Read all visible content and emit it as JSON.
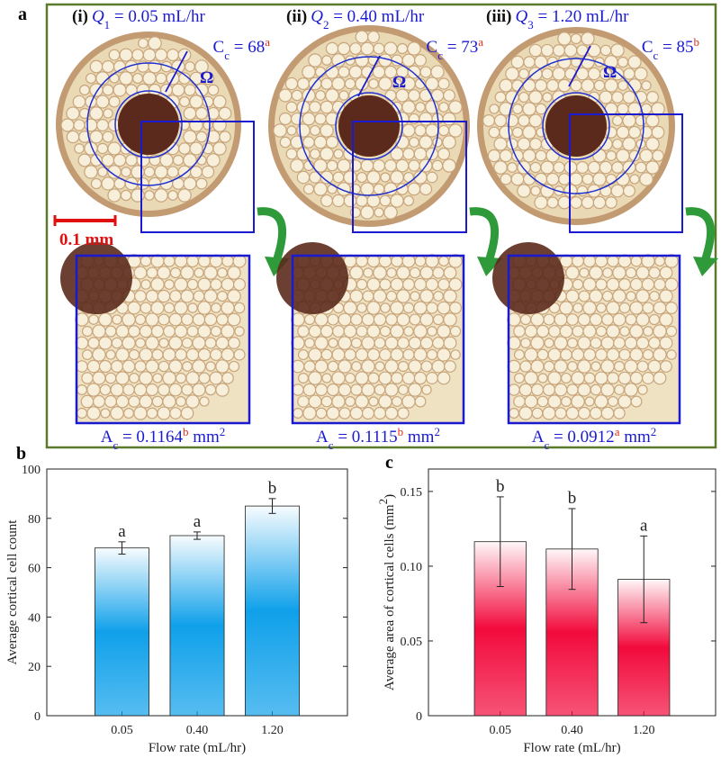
{
  "panel_a": {
    "label": "a",
    "omega": "Ω",
    "scale_bar": "0.1 mm",
    "sections": [
      {
        "numeral": "(i)",
        "rate_symbol": "Q",
        "rate_sub": "1",
        "rate": " = 0.05 mL/hr",
        "count_symbol": "C",
        "count_sub": "c",
        "count": " = 68",
        "count_letter": "a",
        "area_symbol": "A",
        "area_sub": "c",
        "area": " = 0.1164",
        "area_letter": "b",
        "area_unit": " mm",
        "area_unit_sup": "2"
      },
      {
        "numeral": "(ii)",
        "rate_symbol": "Q",
        "rate_sub": "2",
        "rate": " = 0.40 mL/hr",
        "count_symbol": "C",
        "count_sub": "c",
        "count": " = 73",
        "count_letter": "a",
        "area_symbol": "A",
        "area_sub": "c",
        "area": " = 0.1115",
        "area_letter": "b",
        "area_unit": " mm",
        "area_unit_sup": "2"
      },
      {
        "numeral": "(iii)",
        "rate_symbol": "Q",
        "rate_sub": "3",
        "rate": " = 1.20 mL/hr",
        "count_symbol": "C",
        "count_sub": "c",
        "count": " = 85",
        "count_letter": "b",
        "area_symbol": "A",
        "area_sub": "c",
        "area": " = 0.0912",
        "area_letter": "a",
        "area_unit": " mm",
        "area_unit_sup": "2"
      }
    ]
  },
  "chart_data": [
    {
      "type": "bar",
      "panel_label": "b",
      "categories": [
        "0.05",
        "0.40",
        "1.20"
      ],
      "values": [
        68,
        73,
        85
      ],
      "errors": [
        2.5,
        1.5,
        3
      ],
      "letters": [
        "a",
        "a",
        "b"
      ],
      "color": "#0fa0ea",
      "ylim": [
        0,
        100
      ],
      "yticks": [
        0,
        20,
        40,
        60,
        80,
        100
      ],
      "ylabel": "Average cortical cell count",
      "xlabel": "Flow rate (mL/hr)"
    },
    {
      "type": "bar",
      "panel_label": "c",
      "categories": [
        "0.05",
        "0.40",
        "1.20"
      ],
      "values": [
        0.1164,
        0.1115,
        0.0912
      ],
      "errors": [
        0.03,
        0.027,
        0.029
      ],
      "letters": [
        "b",
        "b",
        "a"
      ],
      "color": "#f20a3c",
      "ylim": [
        0,
        0.165
      ],
      "yticks": [
        0,
        0.05,
        {
          "value": 0.1,
          "label": "0.10"
        },
        0.15
      ],
      "ylabel": "Average area of cortical cells (mm",
      "ylabel_sup": "2",
      "ylabel_end": ")",
      "xlabel": "Flow rate (mL/hr)"
    }
  ]
}
